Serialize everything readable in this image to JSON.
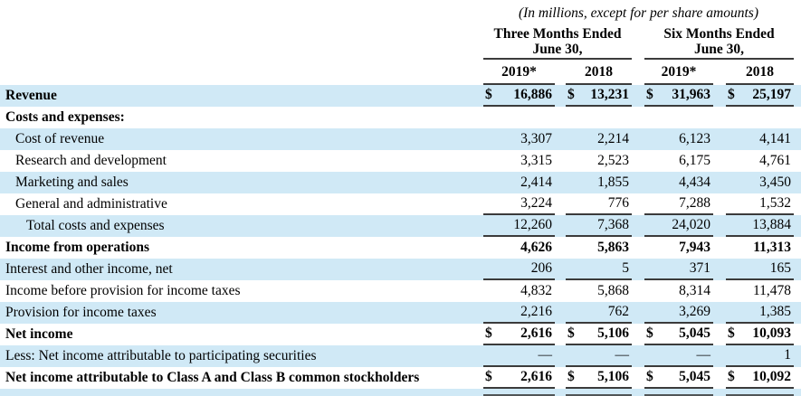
{
  "colors": {
    "row_shade": "#d0e9f6",
    "rule": "#3b3b3b",
    "text": "#000000",
    "background": "#ffffff"
  },
  "table": {
    "subtitle": "(In millions, except for per share amounts)",
    "currency": "$",
    "groups": [
      {
        "line1": "Three Months Ended",
        "line2": "June 30,"
      },
      {
        "line1": "Six Months Ended",
        "line2": "June 30,"
      }
    ],
    "columns": [
      "2019*",
      "2018",
      "2019*",
      "2018"
    ],
    "rows": [
      {
        "label": "Revenue",
        "bold": true,
        "indent": 0,
        "shaded": true,
        "dollar": true,
        "rule_bottom": true,
        "values": [
          "16,886",
          "13,231",
          "31,963",
          "25,197"
        ]
      },
      {
        "label": "Costs and expenses:",
        "bold": true,
        "indent": 0,
        "shaded": false,
        "dollar": false,
        "rule_bottom": false,
        "values": [
          "",
          "",
          "",
          ""
        ]
      },
      {
        "label": "Cost of revenue",
        "bold": false,
        "indent": 1,
        "shaded": true,
        "dollar": false,
        "rule_bottom": false,
        "values": [
          "3,307",
          "2,214",
          "6,123",
          "4,141"
        ]
      },
      {
        "label": "Research and development",
        "bold": false,
        "indent": 1,
        "shaded": false,
        "dollar": false,
        "rule_bottom": false,
        "values": [
          "3,315",
          "2,523",
          "6,175",
          "4,761"
        ]
      },
      {
        "label": "Marketing and sales",
        "bold": false,
        "indent": 1,
        "shaded": true,
        "dollar": false,
        "rule_bottom": false,
        "values": [
          "2,414",
          "1,855",
          "4,434",
          "3,450"
        ]
      },
      {
        "label": "General and administrative",
        "bold": false,
        "indent": 1,
        "shaded": false,
        "dollar": false,
        "rule_bottom": true,
        "values": [
          "3,224",
          "776",
          "7,288",
          "1,532"
        ]
      },
      {
        "label": "Total costs and expenses",
        "bold": false,
        "indent": 2,
        "shaded": true,
        "dollar": false,
        "rule_bottom": true,
        "values": [
          "12,260",
          "7,368",
          "24,020",
          "13,884"
        ]
      },
      {
        "label": "Income from operations",
        "bold": true,
        "indent": 0,
        "shaded": false,
        "dollar": false,
        "rule_bottom": false,
        "values": [
          "4,626",
          "5,863",
          "7,943",
          "11,313"
        ]
      },
      {
        "label": "Interest and other income, net",
        "bold": false,
        "indent": 0,
        "shaded": true,
        "dollar": false,
        "rule_bottom": true,
        "values": [
          "206",
          "5",
          "371",
          "165"
        ]
      },
      {
        "label": "Income before provision for income taxes",
        "bold": false,
        "indent": 0,
        "shaded": false,
        "dollar": false,
        "rule_bottom": false,
        "values": [
          "4,832",
          "5,868",
          "8,314",
          "11,478"
        ]
      },
      {
        "label": "Provision for income taxes",
        "bold": false,
        "indent": 0,
        "shaded": true,
        "dollar": false,
        "rule_bottom": true,
        "values": [
          "2,216",
          "762",
          "3,269",
          "1,385"
        ]
      },
      {
        "label": "Net income",
        "bold": true,
        "indent": 0,
        "shaded": false,
        "dollar": true,
        "rule_bottom": true,
        "values": [
          "2,616",
          "5,106",
          "5,045",
          "10,093"
        ]
      },
      {
        "label": "Less: Net income attributable to participating securities",
        "bold": false,
        "indent": 0,
        "shaded": true,
        "dollar": false,
        "rule_bottom": true,
        "values": [
          "—",
          "—",
          "—",
          "1"
        ]
      },
      {
        "label": "Net income attributable to Class A and Class B common stockholders",
        "bold": true,
        "indent": 0,
        "shaded": false,
        "dollar": true,
        "rule_bottom": true,
        "values": [
          "2,616",
          "5,106",
          "5,045",
          "10,092"
        ]
      }
    ]
  }
}
